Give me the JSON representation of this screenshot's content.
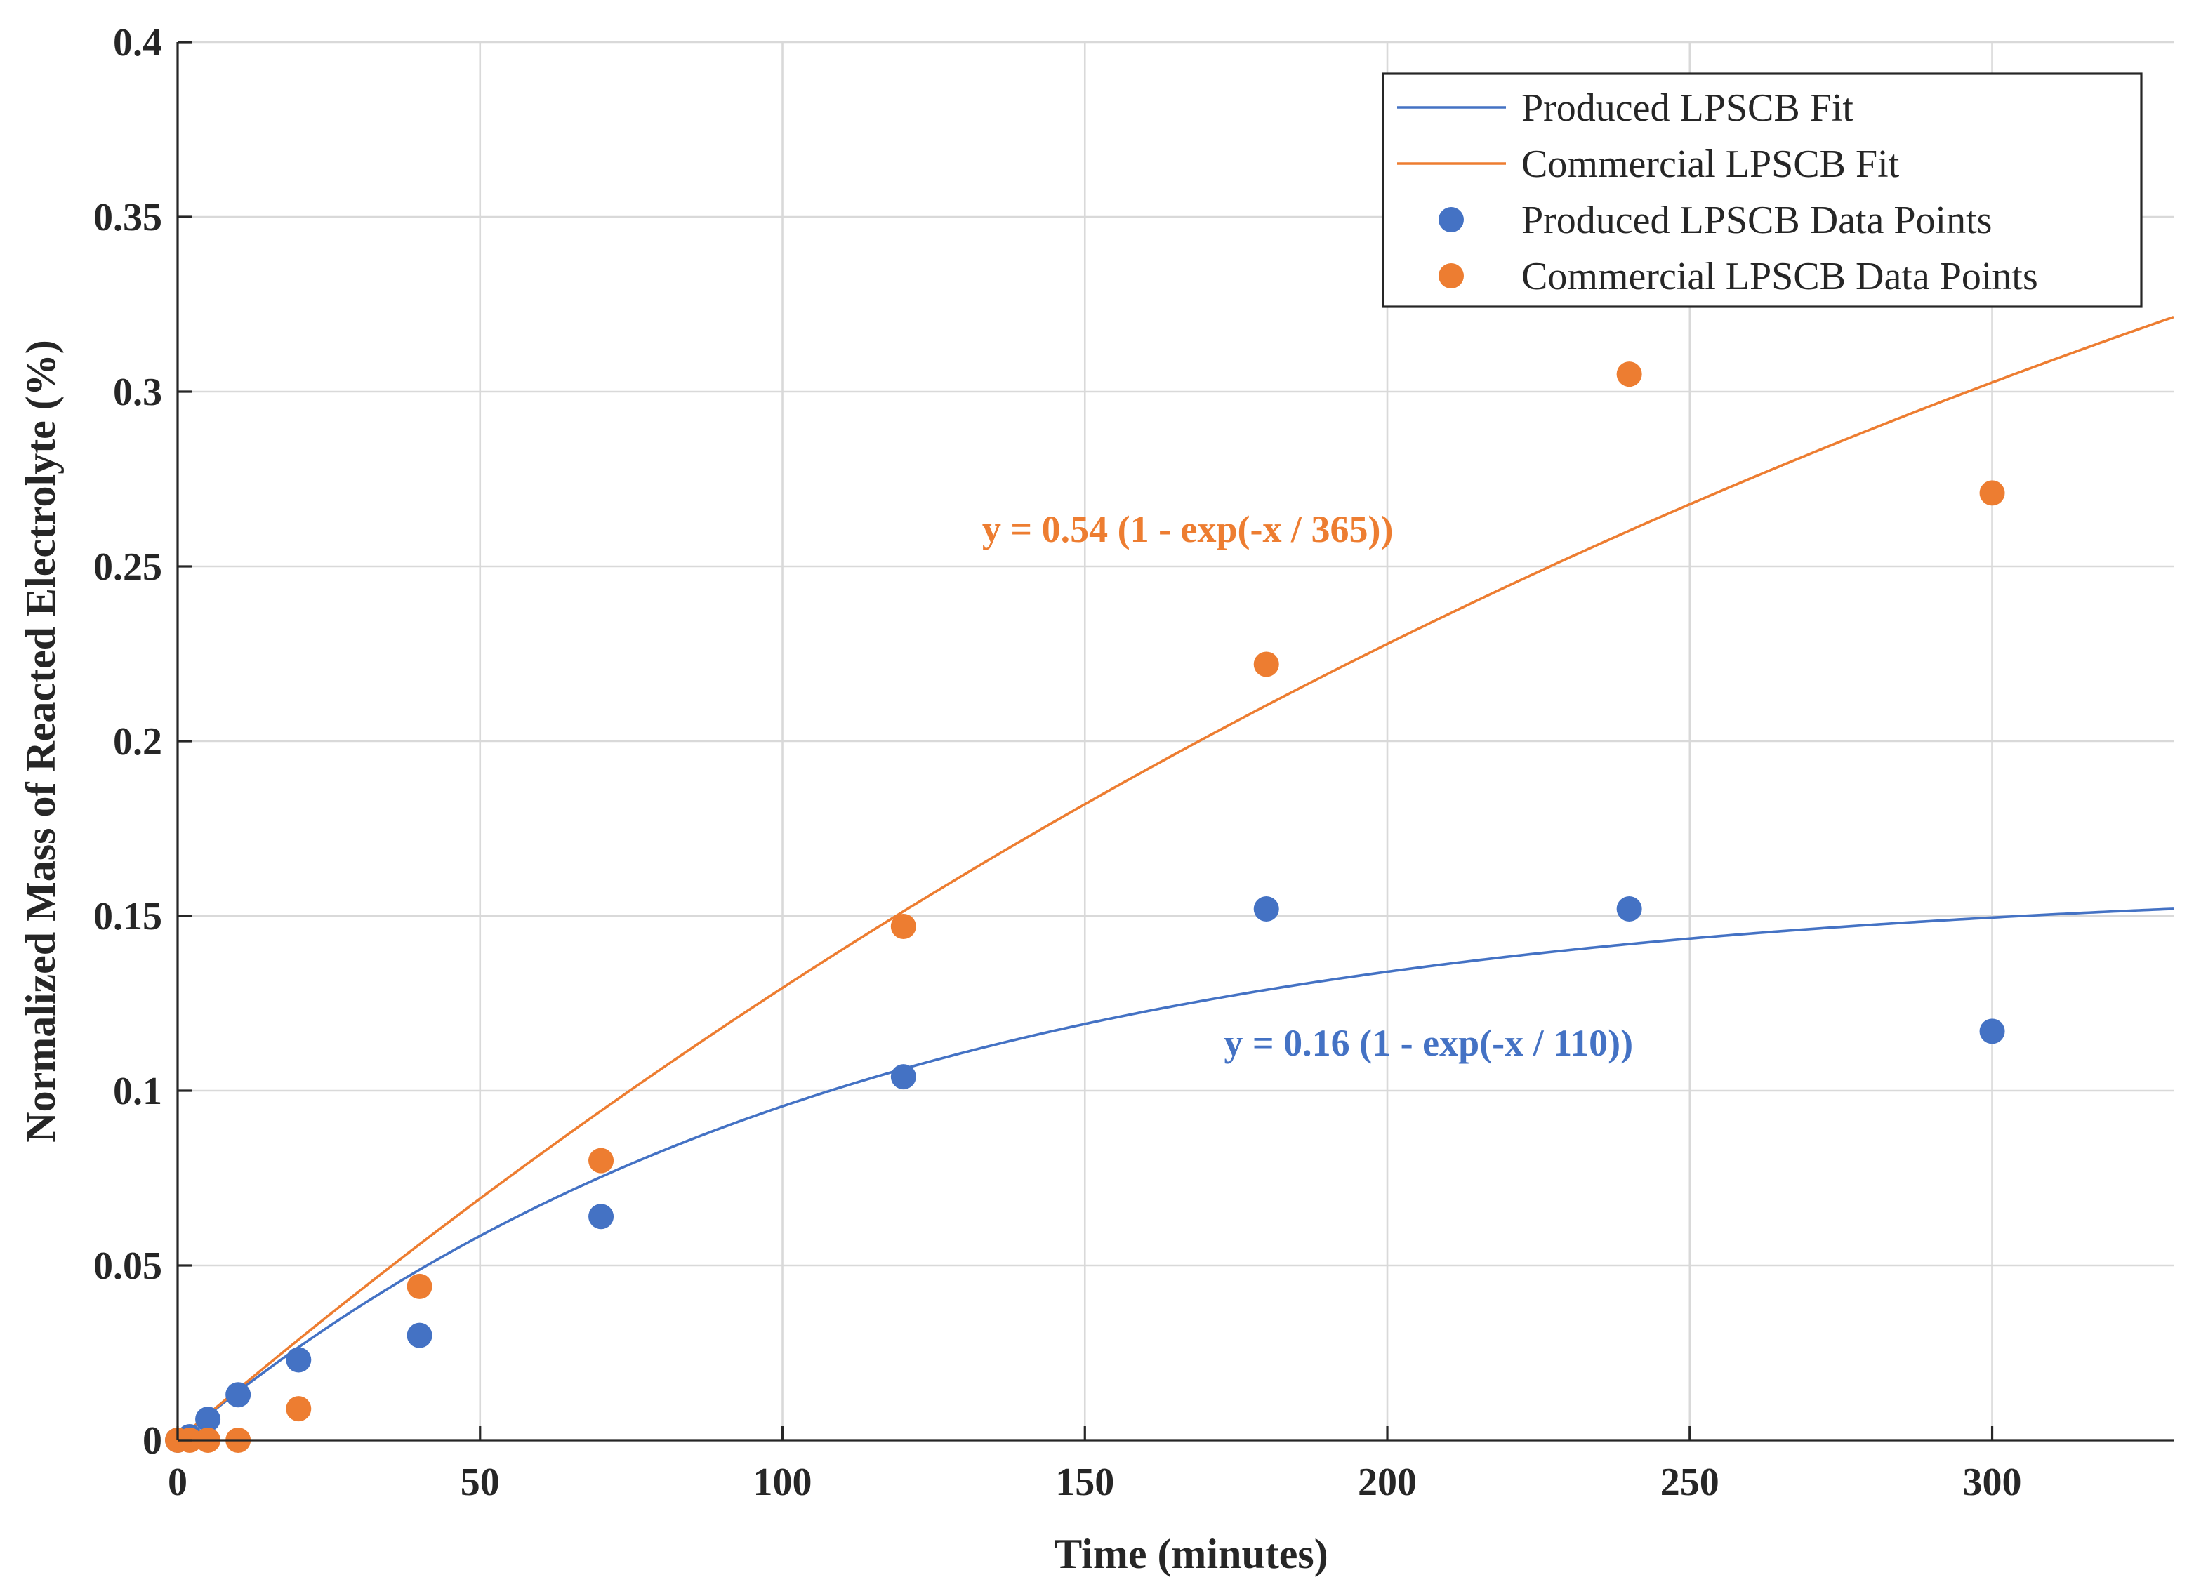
{
  "chart_data": {
    "type": "scatter",
    "title": "",
    "xlabel": "Time (minutes)",
    "ylabel": "Normalized Mass of Reacted Electrolyte (%)",
    "xlim": [
      0,
      330
    ],
    "ylim": [
      0,
      0.4
    ],
    "grid": true,
    "legend_position": "top-right",
    "x_ticks": [
      "0",
      "50",
      "100",
      "150",
      "200",
      "250",
      "300"
    ],
    "x_tick_values": [
      0,
      50,
      100,
      150,
      200,
      250,
      300
    ],
    "y_ticks": [
      "0",
      "0.05",
      "0.1",
      "0.15",
      "0.2",
      "0.25",
      "0.3",
      "0.35",
      "0.4"
    ],
    "y_tick_values": [
      0,
      0.05,
      0.1,
      0.15,
      0.2,
      0.25,
      0.3,
      0.35,
      0.4
    ],
    "series": [
      {
        "name": "Produced LPSCB Fit",
        "kind": "line",
        "color": "#4472c4",
        "model": "exp_saturation",
        "amplitude": 0.16,
        "tau": 110,
        "annotation": "y = 0.16 (1 - exp(-x / 110))",
        "annotation_anchor": [
          173,
          0.11
        ]
      },
      {
        "name": "Commercial LPSCB Fit",
        "kind": "line",
        "color": "#ed7d31",
        "model": "exp_saturation",
        "amplitude": 0.54,
        "tau": 365,
        "annotation": "y = 0.54 (1 - exp(-x / 365))",
        "annotation_anchor": [
          133,
          0.257
        ]
      },
      {
        "name": "Produced LPSCB Data Points",
        "kind": "scatter",
        "color": "#4472c4",
        "x": [
          0,
          2,
          5,
          10,
          20,
          40,
          70,
          120,
          180,
          240,
          300
        ],
        "y": [
          0,
          0.001,
          0.006,
          0.013,
          0.023,
          0.03,
          0.064,
          0.104,
          0.152,
          0.152,
          0.117
        ]
      },
      {
        "name": "Commercial LPSCB Data Points",
        "kind": "scatter",
        "color": "#ed7d31",
        "x": [
          0,
          2,
          5,
          10,
          20,
          40,
          70,
          120,
          180,
          240,
          300
        ],
        "y": [
          0,
          0,
          0,
          0,
          0.009,
          0.044,
          0.08,
          0.147,
          0.222,
          0.305,
          0.271
        ]
      }
    ]
  }
}
